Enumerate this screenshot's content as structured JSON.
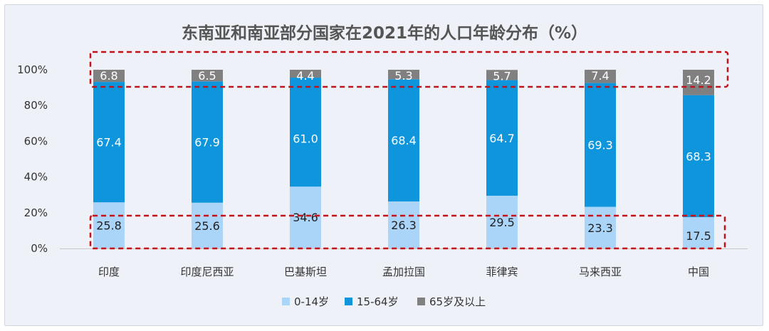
{
  "chart_data": {
    "type": "bar",
    "stacked": true,
    "title": "东南亚和南亚部分国家在2021年的人口年龄分布（%）",
    "categories": [
      "印度",
      "印度尼西亚",
      "巴基斯坦",
      "孟加拉国",
      "菲律宾",
      "马来西亚",
      "中国"
    ],
    "series": [
      {
        "name": "0-14岁",
        "color": "#aad4f8",
        "label_color": "#222222",
        "values": [
          25.8,
          25.6,
          34.6,
          26.3,
          29.5,
          23.3,
          17.5
        ]
      },
      {
        "name": "15-64岁",
        "color": "#0f95dc",
        "label_color": "#ffffff",
        "values": [
          67.4,
          67.9,
          61.0,
          68.4,
          64.7,
          69.3,
          68.3
        ]
      },
      {
        "name": "65岁及以上",
        "color": "#808080",
        "label_color": "#ffffff",
        "values": [
          6.8,
          6.5,
          4.4,
          5.3,
          5.7,
          7.4,
          14.2
        ]
      }
    ],
    "value_labels": [
      [
        "25.8",
        "25.6",
        "34.6",
        "26.3",
        "29.5",
        "23.3",
        "17.5"
      ],
      [
        "67.4",
        "67.9",
        "61.0",
        "68.4",
        "64.7",
        "69.3",
        "68.3"
      ],
      [
        "6.8",
        "6.5",
        "4.4",
        "5.3",
        "5.7",
        "7.4",
        "14.2"
      ]
    ],
    "ylim": [
      0,
      100
    ],
    "yticks": [
      0,
      20,
      40,
      60,
      80,
      100
    ],
    "ytick_labels": [
      "0%",
      "20%",
      "40%",
      "60%",
      "80%",
      "100%"
    ],
    "grid": false,
    "legend": "bottom",
    "highlight_color": "#c0141c"
  }
}
